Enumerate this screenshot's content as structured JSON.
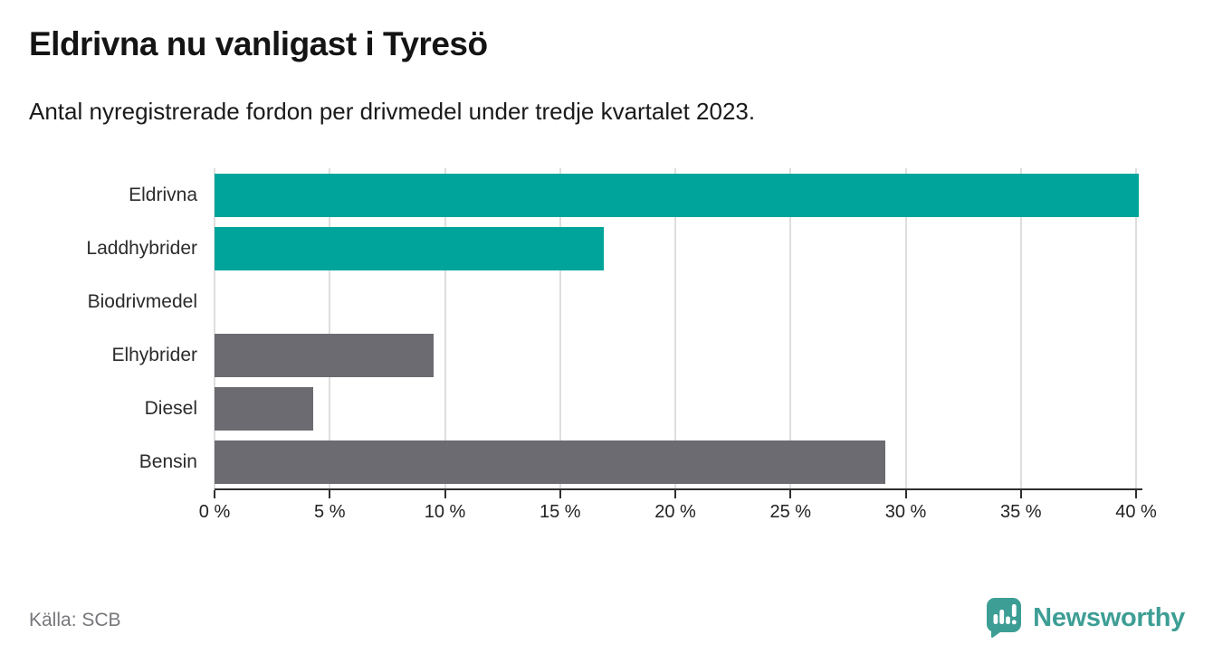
{
  "header": {
    "title": "Eldrivna nu vanligast i Tyresö",
    "subtitle": "Antal nyregistrerade fordon per drivmedel under tredje kvartalet 2023."
  },
  "chart_data": {
    "type": "bar",
    "orientation": "horizontal",
    "title": "Eldrivna nu vanligast i Tyresö",
    "subtitle": "Antal nyregistrerade fordon per drivmedel under tredje kvartalet 2023.",
    "categories": [
      "Eldrivna",
      "Laddhybrider",
      "Biodrivmedel",
      "Elhybrider",
      "Diesel",
      "Bensin"
    ],
    "values": [
      40.1,
      16.9,
      0,
      9.5,
      4.3,
      29.1
    ],
    "unit": "%",
    "bar_colors": [
      "#00a49b",
      "#00a49b",
      "#6c6b72",
      "#6c6b72",
      "#6c6b72",
      "#6c6b72"
    ],
    "xlim": [
      0,
      40
    ],
    "x_ticks": [
      0,
      5,
      10,
      15,
      20,
      25,
      30,
      35,
      40
    ],
    "x_tick_labels": [
      "0 %",
      "5 %",
      "10 %",
      "15 %",
      "20 %",
      "25 %",
      "30 %",
      "35 %",
      "40 %"
    ],
    "grid": "vertical-gridlines-on",
    "legend": "none"
  },
  "footer": {
    "source": "Källa: SCB",
    "brand": "Newsworthy"
  },
  "colors": {
    "accent_teal": "#00a49b",
    "neutral_gray": "#6c6b72",
    "brand_teal": "#3d9e95",
    "axis": "#2e2e2e",
    "gridline": "#dedede",
    "text_dark": "#141414",
    "text_muted": "#76767b"
  },
  "icons": {
    "logo": "newsworthy-speech-bubble-barchart-icon"
  }
}
